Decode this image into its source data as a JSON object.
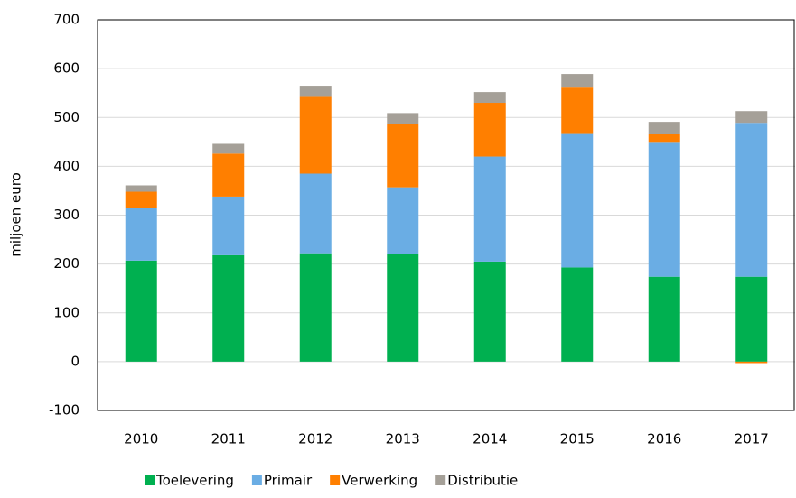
{
  "chart_data": {
    "type": "stacked_bar",
    "y_label": "miljoen euro",
    "categories": [
      "2010",
      "2011",
      "2012",
      "2013",
      "2014",
      "2015",
      "2016",
      "2017"
    ],
    "series": [
      {
        "name": "Toelevering",
        "color": "#00b050",
        "values": [
          207,
          218,
          222,
          220,
          205,
          193,
          174,
          174
        ]
      },
      {
        "name": "Primair",
        "color": "#6aade4",
        "values": [
          108,
          120,
          163,
          137,
          215,
          275,
          276,
          315
        ]
      },
      {
        "name": "Verwerking",
        "color": "#ff7f00",
        "values": [
          33,
          88,
          159,
          130,
          110,
          95,
          17,
          -3
        ]
      },
      {
        "name": "Distributie",
        "color": "#a5a098",
        "values": [
          13,
          20,
          21,
          22,
          22,
          26,
          24,
          24
        ]
      }
    ],
    "ylim": [
      -100,
      700
    ],
    "yticks": [
      -100,
      0,
      100,
      200,
      300,
      400,
      500,
      600,
      700
    ],
    "grid": true,
    "legend": "bottom"
  }
}
